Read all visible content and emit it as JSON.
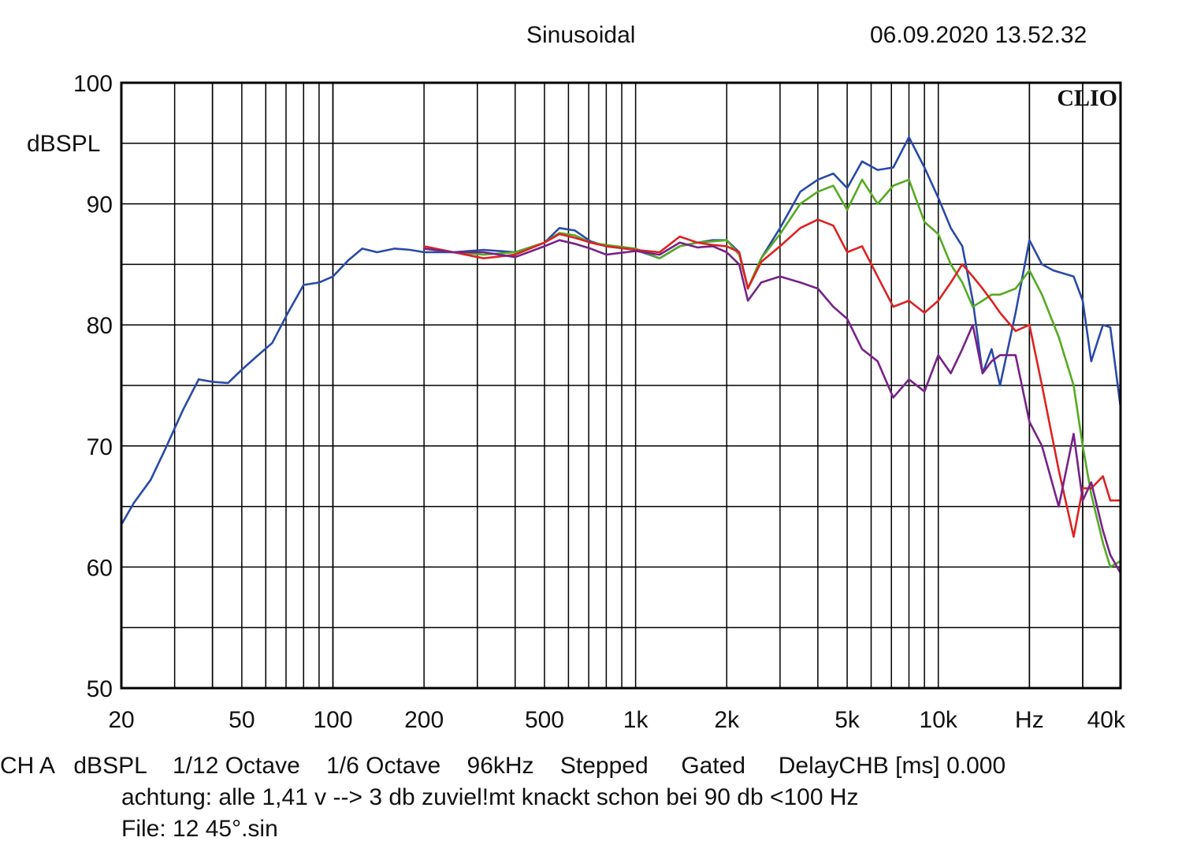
{
  "header": {
    "mode": "Sinusoidal",
    "timestamp": "06.09.2020 13.52.32"
  },
  "brand": "CLIO",
  "footer": {
    "line1": "CH A   dBSPL    1/12 Octave    1/6 Octave    96kHz    Stepped     Gated     DelayCHB [ms] 0.000",
    "line2": "achtung: alle 1,41 v --> 3 db zuviel!mt knackt schon bei 90 db <100 Hz",
    "line3": "File: 12 45°.sin"
  },
  "chart_data": {
    "type": "line",
    "title": "Sinusoidal",
    "xlabel": "Hz",
    "ylabel": "dBSPL",
    "x_scale": "log",
    "xlim": [
      20,
      40000
    ],
    "ylim": [
      50,
      100
    ],
    "grid": true,
    "y_ticks": [
      50,
      60,
      70,
      80,
      90,
      100
    ],
    "x_tick_labels": [
      {
        "value": 20,
        "label": "20"
      },
      {
        "value": 50,
        "label": "50"
      },
      {
        "value": 100,
        "label": "100"
      },
      {
        "value": 200,
        "label": "200"
      },
      {
        "value": 500,
        "label": "500"
      },
      {
        "value": 1000,
        "label": "1k"
      },
      {
        "value": 2000,
        "label": "2k"
      },
      {
        "value": 5000,
        "label": "5k"
      },
      {
        "value": 10000,
        "label": "10k"
      },
      {
        "value": 20000,
        "label": "Hz"
      },
      {
        "value": 40000,
        "label": "40k"
      }
    ],
    "series": [
      {
        "color": "#2a4aa8",
        "x": [
          20,
          22,
          25,
          28,
          32,
          36,
          40,
          45,
          50,
          56,
          63,
          71,
          80,
          90,
          100,
          112,
          125,
          140,
          160,
          180,
          200,
          250,
          315,
          400,
          500,
          560,
          630,
          710,
          800,
          1000,
          1200,
          1400,
          1600,
          1800,
          2000,
          2200,
          2350,
          2600,
          3000,
          3500,
          4000,
          4500,
          5000,
          5600,
          6300,
          7100,
          8000,
          9000,
          10000,
          11000,
          12000,
          13000,
          14000,
          15000,
          16000,
          18000,
          20000,
          22000,
          24000,
          28000,
          30000,
          32000,
          35000,
          37000,
          40000
        ],
        "y": [
          63.5,
          65.3,
          67.2,
          69.8,
          73.0,
          75.5,
          75.3,
          75.2,
          76.3,
          77.4,
          78.5,
          81.0,
          83.3,
          83.5,
          84.0,
          85.3,
          86.3,
          86.0,
          86.3,
          86.2,
          86.0,
          86.0,
          86.2,
          86.0,
          86.8,
          88.0,
          87.8,
          86.9,
          86.5,
          86.2,
          85.5,
          86.5,
          86.8,
          87.0,
          87.0,
          86.0,
          83.0,
          85.5,
          88.0,
          91.0,
          92.0,
          92.5,
          91.3,
          93.5,
          92.8,
          93.0,
          95.5,
          93.0,
          90.5,
          88.0,
          86.5,
          82.0,
          76.0,
          78.0,
          75.0,
          81.0,
          87.0,
          85.0,
          84.5,
          84.0,
          82.0,
          77.0,
          80.0,
          79.8,
          73.2
        ]
      },
      {
        "color": "#55aa22",
        "x": [
          200,
          250,
          315,
          400,
          500,
          560,
          630,
          710,
          800,
          1000,
          1200,
          1400,
          1600,
          1800,
          2000,
          2200,
          2350,
          2600,
          3000,
          3500,
          4000,
          4500,
          5000,
          5600,
          6300,
          7100,
          8000,
          9000,
          10000,
          11000,
          12000,
          13000,
          14000,
          15000,
          16000,
          18000,
          20000,
          22000,
          25000,
          28000,
          30000,
          32000,
          35000,
          37000,
          40000
        ],
        "y": [
          86.3,
          86.0,
          85.8,
          86.0,
          86.8,
          87.6,
          87.4,
          86.8,
          86.6,
          86.3,
          85.5,
          86.5,
          86.8,
          86.9,
          87.0,
          85.8,
          83.0,
          85.5,
          87.5,
          90.0,
          91.0,
          91.5,
          89.5,
          92.0,
          90.0,
          91.5,
          92.0,
          88.5,
          87.5,
          85.0,
          83.5,
          81.5,
          82.0,
          82.5,
          82.5,
          83.0,
          84.5,
          82.5,
          79.0,
          75.0,
          70.0,
          66.0,
          62.0,
          60.0,
          60.5
        ]
      },
      {
        "color": "#dd2222",
        "x": [
          200,
          250,
          315,
          400,
          500,
          560,
          630,
          710,
          800,
          1000,
          1200,
          1400,
          1600,
          1800,
          2000,
          2200,
          2350,
          2600,
          3000,
          3500,
          4000,
          4500,
          5000,
          5600,
          6300,
          7100,
          8000,
          9000,
          10000,
          11000,
          12000,
          13000,
          14000,
          15000,
          16000,
          18000,
          20000,
          22000,
          25000,
          28000,
          30000,
          32000,
          35000,
          37000,
          40000
        ],
        "y": [
          86.5,
          86.0,
          85.5,
          85.8,
          86.8,
          87.5,
          87.2,
          86.8,
          86.5,
          86.2,
          86.0,
          87.3,
          86.8,
          86.6,
          86.5,
          86.0,
          83.0,
          85.2,
          86.5,
          88.0,
          88.7,
          88.2,
          86.0,
          86.5,
          84.0,
          81.5,
          82.0,
          81.0,
          82.0,
          83.5,
          85.0,
          84.0,
          83.0,
          82.0,
          81.0,
          79.5,
          80.0,
          75.0,
          68.0,
          62.5,
          66.5,
          66.5,
          67.5,
          65.5,
          65.5
        ]
      },
      {
        "color": "#772288",
        "x": [
          200,
          250,
          315,
          400,
          500,
          560,
          630,
          710,
          800,
          1000,
          1200,
          1400,
          1600,
          1800,
          2000,
          2200,
          2350,
          2600,
          3000,
          3500,
          4000,
          4500,
          5000,
          5600,
          6300,
          7100,
          8000,
          9000,
          10000,
          11000,
          12000,
          13000,
          14000,
          15000,
          16000,
          18000,
          20000,
          22000,
          25000,
          28000,
          30000,
          32000,
          35000,
          37000,
          40000
        ],
        "y": [
          86.3,
          86.0,
          86.0,
          85.6,
          86.5,
          87.0,
          86.7,
          86.3,
          85.8,
          86.1,
          85.8,
          86.8,
          86.4,
          86.5,
          86.0,
          85.0,
          82.0,
          83.5,
          84.0,
          83.5,
          83.0,
          81.5,
          80.5,
          78.0,
          77.0,
          74.0,
          75.5,
          74.5,
          77.5,
          76.0,
          78.0,
          80.0,
          76.0,
          77.0,
          77.5,
          77.5,
          72.0,
          70.0,
          65.0,
          71.0,
          65.5,
          67.0,
          63.0,
          61.0,
          59.5
        ]
      }
    ]
  }
}
